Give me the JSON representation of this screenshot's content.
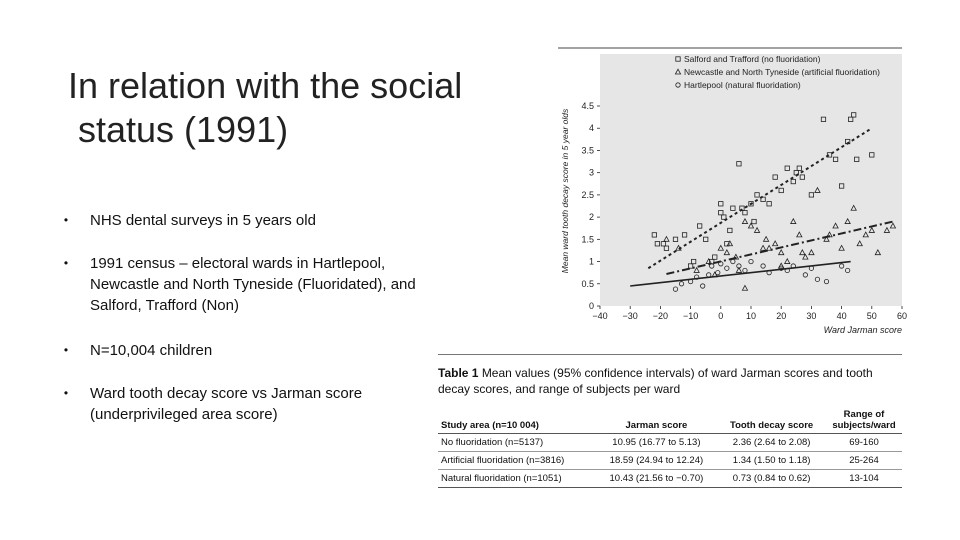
{
  "slide": {
    "title_line1": "In relation with the social",
    "title_line2": " status (1991)",
    "bullets": [
      "NHS dental surveys in 5 years old",
      "1991 census – electoral wards in Hartlepool, Newcastle and North Tyneside (Fluoridated), and Salford, Trafford (Non)",
      "N=10,004 children",
      "Ward tooth decay score vs Jarman score (underprivileged area score)"
    ],
    "bullet_glyph": "•"
  },
  "table": {
    "caption_label": "Table 1",
    "caption_text": "Mean values (95% confidence intervals) of ward Jarman scores and tooth decay scores, and range of subjects per ward",
    "headers": [
      "Study area (n=10 004)",
      "Jarman score",
      "Tooth decay score",
      "Range of subjects/ward"
    ],
    "rows": [
      [
        "No fluoridation (n=5137)",
        "10.95 (16.77 to 5.13)",
        "2.36 (2.64 to 2.08)",
        "69-160"
      ],
      [
        "Artificial fluoridation (n=3816)",
        "18.59 (24.94 to 12.24)",
        "1.34 (1.50 to 1.18)",
        "25-264"
      ],
      [
        "Natural fluoridation (n=1051)",
        "10.43 (21.56 to −0.70)",
        "0.73 (0.84 to 0.62)",
        "13-104"
      ]
    ]
  },
  "chart_data": {
    "type": "scatter",
    "title": "",
    "xlabel": "Ward Jarman score",
    "ylabel": "Mean ward tooth decay score in 5 year olds",
    "xlim": [
      -40,
      60
    ],
    "ylim": [
      0,
      4.5
    ],
    "xticks": [
      -40,
      -30,
      -20,
      -10,
      0,
      10,
      20,
      30,
      40,
      50,
      60
    ],
    "yticks": [
      0,
      0.5,
      1,
      1.5,
      2,
      2.5,
      3,
      3.5,
      4,
      4.5
    ],
    "grid": false,
    "legend_position": "top",
    "background": "#e6e6e6",
    "series": [
      {
        "name": "Salford and Trafford (no fluoridation)",
        "marker": "square",
        "line_style": "dotted",
        "fit": [
          [
            -24,
            0.85
          ],
          [
            50,
            4.0
          ]
        ],
        "x": [
          -22,
          -21,
          -19,
          -15,
          -12,
          -9,
          -7,
          -5,
          -3,
          -2,
          0,
          0,
          2,
          4,
          6,
          7,
          8,
          10,
          11,
          12,
          14,
          16,
          18,
          20,
          22,
          24,
          25,
          26,
          27,
          30,
          34,
          36,
          38,
          40,
          42,
          43,
          44,
          45,
          50,
          -18,
          -10,
          1,
          3
        ],
        "y": [
          1.6,
          1.4,
          1.4,
          1.5,
          1.6,
          1.0,
          1.8,
          1.5,
          1.0,
          1.1,
          2.3,
          2.1,
          1.4,
          2.2,
          3.2,
          2.2,
          2.1,
          2.3,
          1.9,
          2.5,
          2.4,
          2.3,
          2.9,
          2.6,
          3.1,
          2.8,
          3.0,
          3.1,
          2.9,
          2.5,
          4.2,
          3.4,
          3.3,
          2.7,
          3.7,
          4.2,
          4.3,
          3.3,
          3.4,
          1.3,
          0.9,
          2.0,
          1.7
        ]
      },
      {
        "name": "Newcastle and North Tyneside (artificial fluoridation)",
        "marker": "triangle",
        "line_style": "dashdot",
        "fit": [
          [
            -18,
            0.72
          ],
          [
            57,
            1.9
          ]
        ],
        "x": [
          -18,
          -14,
          -8,
          -4,
          -2,
          0,
          2,
          3,
          5,
          6,
          8,
          10,
          12,
          14,
          15,
          16,
          18,
          20,
          22,
          24,
          26,
          27,
          28,
          30,
          32,
          35,
          36,
          38,
          40,
          42,
          44,
          46,
          48,
          50,
          52,
          55,
          57,
          8,
          20
        ],
        "y": [
          1.5,
          1.3,
          0.8,
          1.0,
          0.7,
          1.3,
          1.2,
          1.4,
          1.1,
          0.8,
          1.9,
          1.8,
          1.7,
          1.3,
          1.5,
          1.3,
          1.4,
          1.2,
          1.0,
          1.9,
          1.6,
          1.2,
          1.1,
          1.2,
          2.6,
          1.5,
          1.6,
          1.8,
          1.3,
          1.9,
          2.2,
          1.4,
          1.6,
          1.7,
          1.2,
          1.7,
          1.8,
          0.4,
          0.9
        ]
      },
      {
        "name": "Hartlepool (natural fluoridation)",
        "marker": "circle",
        "line_style": "solid",
        "fit": [
          [
            -30,
            0.45
          ],
          [
            43,
            1.0
          ]
        ],
        "x": [
          -15,
          -13,
          -10,
          -8,
          -6,
          -4,
          -3,
          -1,
          0,
          2,
          4,
          6,
          8,
          10,
          14,
          16,
          20,
          22,
          24,
          28,
          30,
          32,
          40,
          42,
          35
        ],
        "y": [
          0.38,
          0.5,
          0.55,
          0.65,
          0.45,
          0.7,
          0.9,
          0.75,
          0.95,
          0.85,
          1.0,
          0.9,
          0.8,
          1.0,
          0.9,
          0.75,
          0.85,
          0.8,
          0.9,
          0.7,
          0.85,
          0.6,
          0.9,
          0.8,
          0.55
        ]
      }
    ]
  },
  "colors": {
    "chart_bg": "#e6e6e6",
    "ink": "#222222"
  }
}
